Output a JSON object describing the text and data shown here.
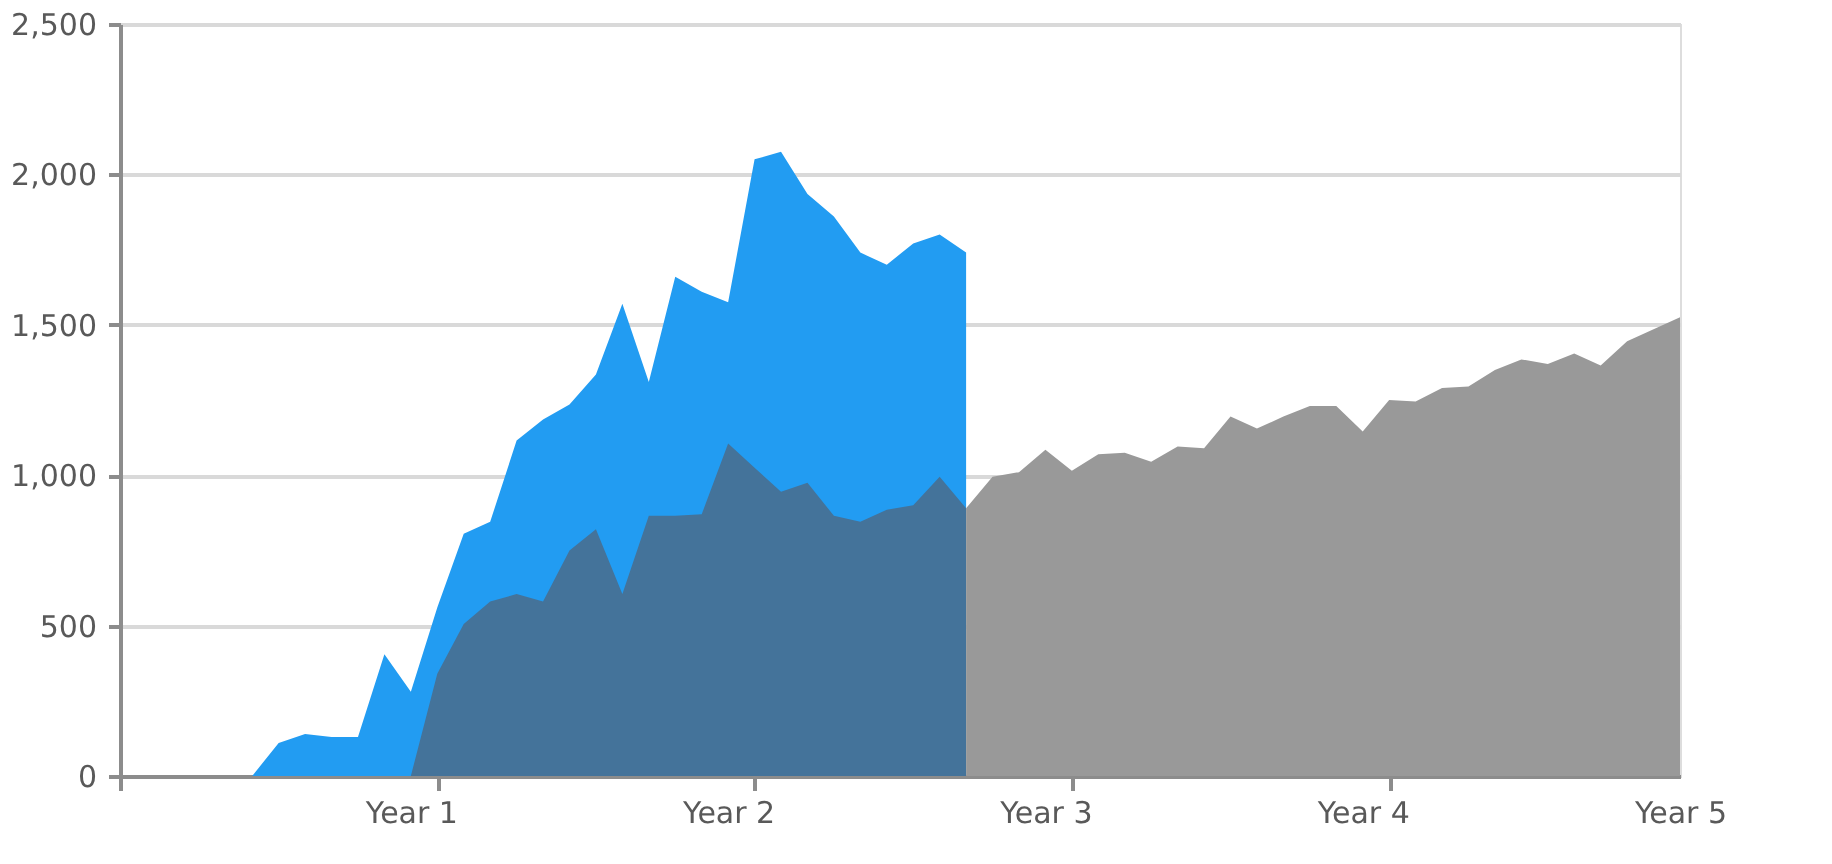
{
  "chart_data": {
    "type": "area",
    "categories": [
      null,
      null,
      null,
      null,
      null,
      null,
      null,
      null,
      null,
      null,
      null,
      "Year 1",
      null,
      null,
      null,
      null,
      null,
      null,
      null,
      null,
      null,
      null,
      null,
      "Year 2",
      null,
      null,
      null,
      null,
      null,
      null,
      null,
      null,
      null,
      null,
      null,
      "Year 3",
      null,
      null,
      null,
      null,
      null,
      null,
      null,
      null,
      null,
      null,
      null,
      "Year 4",
      null,
      null,
      null,
      null,
      null,
      null,
      null,
      null,
      null,
      null,
      null,
      "Year 5"
    ],
    "series": [
      {
        "color": "#229cf2",
        "values": [
          0,
          0,
          0,
          0,
          0,
          0,
          110,
          140,
          130,
          130,
          405,
          280,
          560,
          805,
          845,
          1115,
          1185,
          1235,
          1335,
          1570,
          1310,
          1660,
          1610,
          1575,
          2050,
          2075,
          1935,
          1860,
          1740,
          1700,
          1770,
          1800,
          1740,
          null,
          null,
          null,
          null,
          null,
          null,
          null,
          null,
          null,
          null,
          null,
          null,
          null,
          null,
          null,
          null,
          null,
          null,
          null,
          null,
          null,
          null,
          null,
          null,
          null,
          null,
          null
        ]
      },
      {
        "color": "#44739a",
        "values": [
          0,
          0,
          0,
          0,
          0,
          0,
          0,
          0,
          0,
          0,
          0,
          0,
          340,
          505,
          580,
          605,
          580,
          750,
          820,
          605,
          865,
          865,
          870,
          1105,
          1025,
          945,
          975,
          865,
          845,
          885,
          900,
          995,
          890,
          null,
          null,
          null,
          null,
          null,
          null,
          null,
          null,
          null,
          null,
          null,
          null,
          null,
          null,
          null,
          null,
          null,
          null,
          null,
          null,
          null,
          null,
          null,
          null,
          null,
          null,
          null
        ]
      },
      {
        "color": "#999999",
        "values": [
          null,
          null,
          null,
          null,
          null,
          null,
          null,
          null,
          null,
          null,
          null,
          null,
          null,
          null,
          null,
          null,
          null,
          null,
          null,
          null,
          null,
          null,
          null,
          null,
          null,
          null,
          null,
          null,
          null,
          null,
          null,
          null,
          890,
          995,
          1010,
          1085,
          1015,
          1070,
          1075,
          1045,
          1095,
          1090,
          1195,
          1155,
          1195,
          1230,
          1230,
          1145,
          1250,
          1245,
          1290,
          1295,
          1350,
          1385,
          1370,
          1405,
          1365,
          1445,
          1485,
          1525
        ]
      }
    ],
    "ylim": [
      0,
      2500
    ],
    "yticks": [
      0,
      {
        "value": 500,
        "label": "500"
      },
      {
        "value": 1000,
        "label": "1,000"
      },
      {
        "value": 1500,
        "label": "1,500"
      },
      {
        "value": 2000,
        "label": "2,000"
      },
      {
        "value": 2500,
        "label": "2,500"
      }
    ],
    "grid": "y"
  }
}
